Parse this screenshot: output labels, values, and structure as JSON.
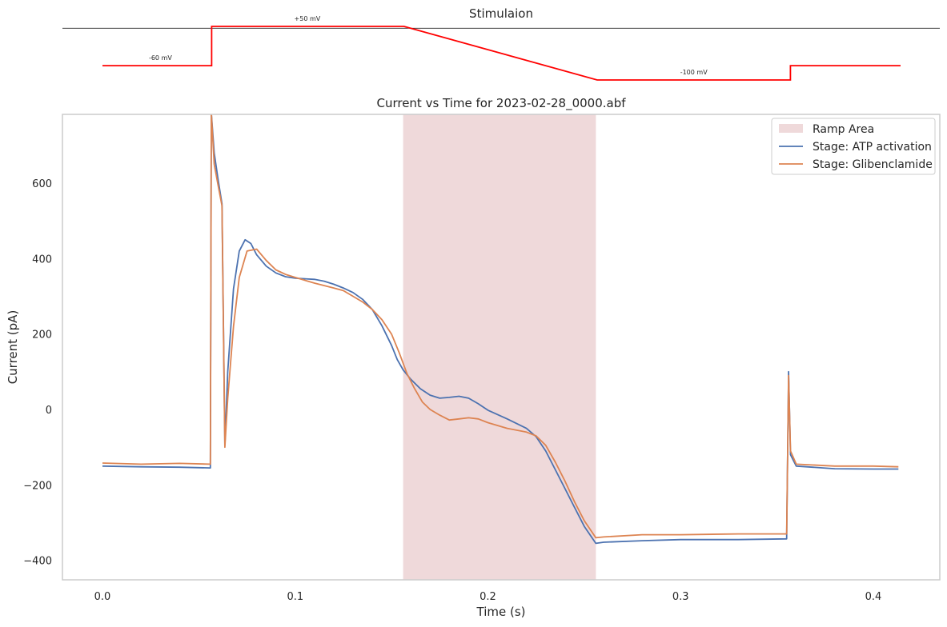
{
  "chart_data": [
    {
      "type": "line",
      "title": "Stimulaion",
      "xlim": [
        0,
        0.413
      ],
      "ylim": [
        -112,
        62
      ],
      "x": [
        0,
        0.0565,
        0.0565,
        0.156,
        0.256,
        0.356,
        0.356,
        0.413
      ],
      "y": [
        -60,
        -60,
        50,
        50,
        -100,
        -100,
        -60,
        -60
      ],
      "annotations": [
        {
          "text": "-60 mV",
          "x": 0.03,
          "y": -60
        },
        {
          "text": "+50 mV",
          "x": 0.106,
          "y": 50
        },
        {
          "text": "-100 mV",
          "x": 0.306,
          "y": -100
        }
      ],
      "color": "#ff0000",
      "baseline_y": 0
    },
    {
      "type": "line",
      "title": "Current vs Time for 2023-02-28_0000.abf",
      "xlabel": "Time (s)",
      "ylabel": "Current (pA)",
      "xlim": [
        -0.0205,
        0.434
      ],
      "ylim": [
        -455,
        785
      ],
      "xticks": [
        0.0,
        0.1,
        0.2,
        0.3,
        0.4
      ],
      "xtick_labels": [
        "0.0",
        "0.1",
        "0.2",
        "0.3",
        "0.4"
      ],
      "yticks": [
        -400,
        -200,
        0,
        200,
        400,
        600
      ],
      "ytick_labels": [
        "−400",
        "−200",
        "0",
        "200",
        "400",
        "600"
      ],
      "grid": false,
      "legend_position": "top-right",
      "ramp_area": {
        "label": "Ramp Area",
        "x_start": 0.156,
        "x_end": 0.256,
        "color": "#d9a4a8"
      },
      "series": [
        {
          "name": "Stage: ATP activation",
          "color": "#4c72b0",
          "points": [
            [
              0,
              -150
            ],
            [
              0.02,
              -152
            ],
            [
              0.04,
              -153
            ],
            [
              0.056,
              -155
            ],
            [
              0.0565,
              785
            ],
            [
              0.058,
              680
            ],
            [
              0.06,
              610
            ],
            [
              0.062,
              545
            ],
            [
              0.0635,
              -95
            ],
            [
              0.065,
              100
            ],
            [
              0.068,
              320
            ],
            [
              0.071,
              420
            ],
            [
              0.074,
              450
            ],
            [
              0.077,
              440
            ],
            [
              0.08,
              410
            ],
            [
              0.085,
              380
            ],
            [
              0.09,
              362
            ],
            [
              0.095,
              352
            ],
            [
              0.1,
              348
            ],
            [
              0.11,
              345
            ],
            [
              0.115,
              340
            ],
            [
              0.12,
              332
            ],
            [
              0.125,
              322
            ],
            [
              0.13,
              310
            ],
            [
              0.135,
              292
            ],
            [
              0.14,
              265
            ],
            [
              0.145,
              222
            ],
            [
              0.15,
              170
            ],
            [
              0.153,
              132
            ],
            [
              0.156,
              105
            ],
            [
              0.16,
              80
            ],
            [
              0.165,
              55
            ],
            [
              0.17,
              38
            ],
            [
              0.175,
              30
            ],
            [
              0.18,
              32
            ],
            [
              0.185,
              35
            ],
            [
              0.19,
              30
            ],
            [
              0.195,
              15
            ],
            [
              0.2,
              -2
            ],
            [
              0.21,
              -25
            ],
            [
              0.22,
              -50
            ],
            [
              0.225,
              -72
            ],
            [
              0.23,
              -110
            ],
            [
              0.235,
              -160
            ],
            [
              0.24,
              -210
            ],
            [
              0.245,
              -260
            ],
            [
              0.25,
              -310
            ],
            [
              0.256,
              -355
            ],
            [
              0.26,
              -352
            ],
            [
              0.28,
              -348
            ],
            [
              0.3,
              -345
            ],
            [
              0.33,
              -345
            ],
            [
              0.355,
              -343
            ],
            [
              0.356,
              100
            ],
            [
              0.357,
              -120
            ],
            [
              0.36,
              -150
            ],
            [
              0.38,
              -157
            ],
            [
              0.4,
              -158
            ],
            [
              0.413,
              -158
            ]
          ]
        },
        {
          "name": "Stage: Glibenclamide",
          "color": "#dd8452",
          "points": [
            [
              0,
              -142
            ],
            [
              0.02,
              -145
            ],
            [
              0.04,
              -143
            ],
            [
              0.056,
              -145
            ],
            [
              0.0565,
              785
            ],
            [
              0.058,
              650
            ],
            [
              0.06,
              595
            ],
            [
              0.062,
              540
            ],
            [
              0.0635,
              -100
            ],
            [
              0.065,
              30
            ],
            [
              0.068,
              220
            ],
            [
              0.071,
              350
            ],
            [
              0.075,
              420
            ],
            [
              0.08,
              425
            ],
            [
              0.085,
              395
            ],
            [
              0.09,
              370
            ],
            [
              0.095,
              358
            ],
            [
              0.1,
              350
            ],
            [
              0.11,
              335
            ],
            [
              0.12,
              322
            ],
            [
              0.125,
              315
            ],
            [
              0.13,
              300
            ],
            [
              0.135,
              285
            ],
            [
              0.14,
              265
            ],
            [
              0.145,
              238
            ],
            [
              0.15,
              200
            ],
            [
              0.154,
              150
            ],
            [
              0.158,
              95
            ],
            [
              0.162,
              55
            ],
            [
              0.166,
              20
            ],
            [
              0.17,
              0
            ],
            [
              0.175,
              -15
            ],
            [
              0.18,
              -28
            ],
            [
              0.185,
              -25
            ],
            [
              0.19,
              -22
            ],
            [
              0.195,
              -25
            ],
            [
              0.2,
              -35
            ],
            [
              0.21,
              -50
            ],
            [
              0.22,
              -60
            ],
            [
              0.225,
              -70
            ],
            [
              0.23,
              -95
            ],
            [
              0.235,
              -140
            ],
            [
              0.24,
              -190
            ],
            [
              0.245,
              -245
            ],
            [
              0.25,
              -295
            ],
            [
              0.256,
              -340
            ],
            [
              0.26,
              -338
            ],
            [
              0.28,
              -332
            ],
            [
              0.3,
              -332
            ],
            [
              0.33,
              -330
            ],
            [
              0.355,
              -330
            ],
            [
              0.356,
              90
            ],
            [
              0.357,
              -110
            ],
            [
              0.36,
              -145
            ],
            [
              0.38,
              -150
            ],
            [
              0.4,
              -150
            ],
            [
              0.413,
              -152
            ]
          ]
        }
      ]
    }
  ]
}
